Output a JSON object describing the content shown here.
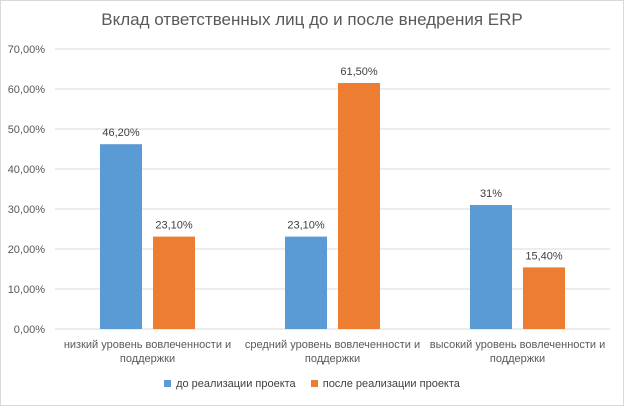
{
  "chart_data": {
    "type": "bar",
    "title": "Вклад ответственных лиц до и после внедрения ERP",
    "categories": [
      [
        "низкий  уровень вовлеченности и",
        "поддержки"
      ],
      [
        "средний уровень вовлеченности и",
        "поддержки"
      ],
      [
        "высокий уровень вовлеченности и",
        "поддержки"
      ]
    ],
    "series": [
      {
        "name": "до реализации проекта",
        "color": "#5b9bd5",
        "values": [
          46.2,
          23.1,
          31
        ],
        "labels": [
          "46,20%",
          "23,10%",
          "31%"
        ]
      },
      {
        "name": "после реализации проекта",
        "color": "#ed7d31",
        "values": [
          23.1,
          61.5,
          15.4
        ],
        "labels": [
          "23,10%",
          "61,50%",
          "15,40%"
        ]
      }
    ],
    "ylim": [
      0,
      70
    ],
    "yticks": [
      0,
      10,
      20,
      30,
      40,
      50,
      60,
      70
    ],
    "ytick_labels": [
      "0,00%",
      "10,00%",
      "20,00%",
      "30,00%",
      "40,00%",
      "50,00%",
      "60,00%",
      "70,00%"
    ],
    "xlabel": "",
    "ylabel": "",
    "grid": true,
    "legend_position": "bottom"
  }
}
